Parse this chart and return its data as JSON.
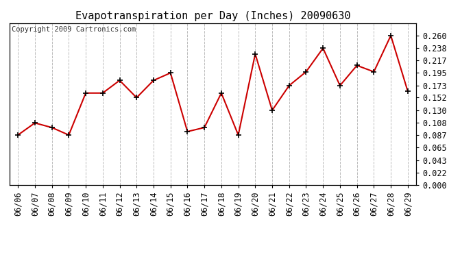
{
  "title": "Evapotranspiration per Day (Inches) 20090630",
  "copyright_text": "Copyright 2009 Cartronics.com",
  "dates": [
    "06/06",
    "06/07",
    "06/08",
    "06/09",
    "06/10",
    "06/11",
    "06/12",
    "06/13",
    "06/14",
    "06/15",
    "06/16",
    "06/17",
    "06/18",
    "06/19",
    "06/20",
    "06/21",
    "06/22",
    "06/23",
    "06/24",
    "06/25",
    "06/26",
    "06/27",
    "06/28",
    "06/29"
  ],
  "values": [
    0.087,
    0.108,
    0.1,
    0.087,
    0.16,
    0.16,
    0.182,
    0.152,
    0.182,
    0.195,
    0.093,
    0.1,
    0.16,
    0.087,
    0.228,
    0.13,
    0.173,
    0.197,
    0.238,
    0.173,
    0.208,
    0.197,
    0.26,
    0.163
  ],
  "line_color": "#cc0000",
  "marker": "+",
  "marker_color": "#000000",
  "grid_color": "#bbbbbb",
  "bg_color": "#ffffff",
  "plot_bg": "#f5f5f5",
  "ylim": [
    0.0,
    0.2816
  ],
  "yticks": [
    0.0,
    0.022,
    0.043,
    0.065,
    0.087,
    0.108,
    0.13,
    0.152,
    0.173,
    0.195,
    0.217,
    0.238,
    0.26
  ],
  "title_fontsize": 11,
  "copyright_fontsize": 7.5,
  "tick_fontsize": 8.5
}
